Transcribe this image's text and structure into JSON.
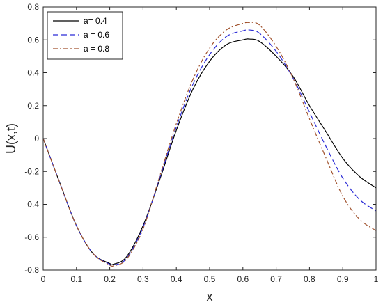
{
  "chart_data": {
    "type": "line",
    "title": "",
    "xlabel": "x",
    "ylabel": "U(x,t)",
    "xlim": [
      0,
      1
    ],
    "ylim": [
      -0.8,
      0.8
    ],
    "xticks": [
      "0",
      "0.1",
      "0.2",
      "0.3",
      "0.4",
      "0.5",
      "0.6",
      "0.7",
      "0.8",
      "0.9",
      "1"
    ],
    "yticks": [
      "-0.8",
      "-0.6",
      "-0.4",
      "-0.2",
      "0",
      "0.2",
      "0.4",
      "0.6",
      "0.8"
    ],
    "grid": false,
    "legend_position": "top-left",
    "x": [
      0,
      0.05,
      0.1,
      0.15,
      0.2,
      0.21,
      0.25,
      0.3,
      0.35,
      0.4,
      0.45,
      0.5,
      0.55,
      0.6,
      0.62,
      0.65,
      0.7,
      0.75,
      0.8,
      0.85,
      0.9,
      0.95,
      1.0
    ],
    "series": [
      {
        "name": "a= 0.4",
        "color": "#000000",
        "dash": "solid",
        "values": [
          0,
          -0.27,
          -0.53,
          -0.7,
          -0.76,
          -0.765,
          -0.72,
          -0.53,
          -0.25,
          0.05,
          0.3,
          0.47,
          0.57,
          0.6,
          0.605,
          0.59,
          0.5,
          0.38,
          0.2,
          0.04,
          -0.12,
          -0.23,
          -0.3
        ]
      },
      {
        "name": "a = 0.6",
        "color": "#2b2bd6",
        "dash": "dashed",
        "values": [
          0,
          -0.27,
          -0.53,
          -0.7,
          -0.765,
          -0.77,
          -0.73,
          -0.54,
          -0.24,
          0.07,
          0.33,
          0.51,
          0.62,
          0.655,
          0.66,
          0.64,
          0.53,
          0.37,
          0.16,
          -0.05,
          -0.24,
          -0.37,
          -0.44
        ]
      },
      {
        "name": "a = 0.8",
        "color": "#a0522d",
        "dash": "dashdot",
        "values": [
          0,
          -0.27,
          -0.53,
          -0.7,
          -0.77,
          -0.775,
          -0.735,
          -0.55,
          -0.23,
          0.09,
          0.36,
          0.55,
          0.66,
          0.7,
          0.705,
          0.69,
          0.56,
          0.37,
          0.12,
          -0.12,
          -0.35,
          -0.49,
          -0.56
        ]
      }
    ]
  }
}
